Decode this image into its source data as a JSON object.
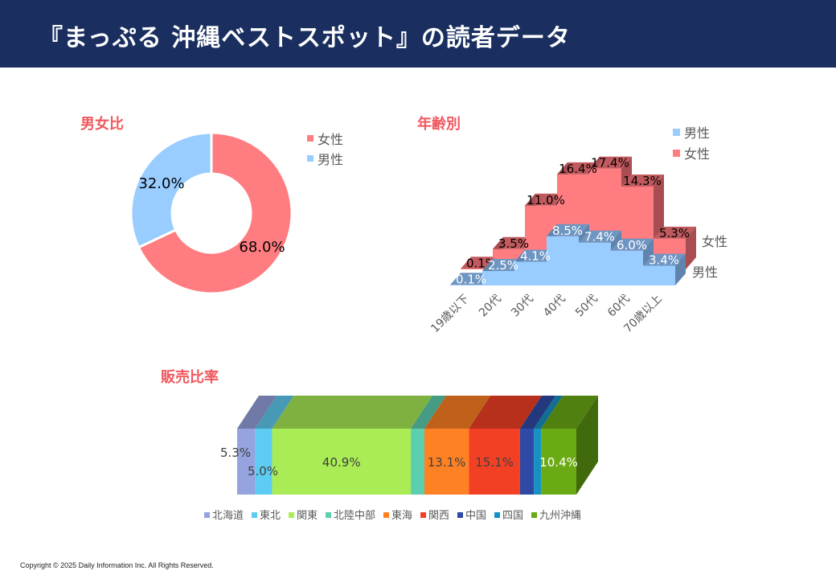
{
  "header": {
    "title": "『まっぷる 沖縄ベストスポット』の読者データ",
    "background": "#1a2f60"
  },
  "footer": {
    "copyright": "Copyright © 2025 Daily Information Inc. All Rights Reserved."
  },
  "chart_data": [
    {
      "id": "gender",
      "type": "pie",
      "variant": "donut",
      "title": "男女比",
      "slices": [
        {
          "label": "女性",
          "value": 68.0,
          "display": "68.0%",
          "color": "#ff7c80"
        },
        {
          "label": "男性",
          "value": 32.0,
          "display": "32.0%",
          "color": "#99ccff"
        }
      ],
      "legend": [
        "女性",
        "男性"
      ],
      "legend_position": "right"
    },
    {
      "id": "age",
      "type": "area",
      "variant": "3d-stepped",
      "title": "年齢別",
      "categories": [
        "19歳以下",
        "20代",
        "30代",
        "40代",
        "50代",
        "60代",
        "70歳以上"
      ],
      "series": [
        {
          "name": "男性",
          "values": [
            0.1,
            2.5,
            4.1,
            8.5,
            7.4,
            6.0,
            3.4
          ],
          "labels": [
            "0.1%",
            "2.5%",
            "4.1%",
            "8.5%",
            "7.4%",
            "6.0%",
            "3.4%"
          ],
          "color": "#99ccff",
          "top_color": "#6f96c2"
        },
        {
          "name": "女性",
          "values": [
            0.1,
            3.5,
            11.0,
            16.4,
            17.4,
            14.3,
            5.3
          ],
          "labels": [
            "0.1%",
            "3.5%",
            "11.0%",
            "16.4%",
            "17.4%",
            "14.3%",
            "5.3%"
          ],
          "color": "#ff7c80",
          "top_color": "#c05a5e"
        }
      ],
      "legend": [
        "男性",
        "女性"
      ],
      "legend_position": "top-right",
      "depth_axis_labels": [
        "女性",
        "男性"
      ]
    },
    {
      "id": "sales",
      "type": "bar",
      "variant": "3d-100%-stacked-horizontal",
      "title": "販売比率",
      "segments": [
        {
          "label": "北海道",
          "value": 5.3,
          "display": "5.3%",
          "color": "#95a3de",
          "top": "#717aa6"
        },
        {
          "label": "東北",
          "value": 5.0,
          "display": "5.0%",
          "color": "#5ecbf3",
          "top": "#4799b6"
        },
        {
          "label": "関東",
          "value": 40.9,
          "display": "40.9%",
          "color": "#a9ec55",
          "top": "#7fb140"
        },
        {
          "label": "北陸中部",
          "value": 4.0,
          "display": "",
          "color": "#5ccfae",
          "top": "#459b83"
        },
        {
          "label": "東海",
          "value": 13.1,
          "display": "13.1%",
          "color": "#fe8124",
          "top": "#bf611b"
        },
        {
          "label": "関西",
          "value": 15.1,
          "display": "15.1%",
          "color": "#f24025",
          "top": "#b6301c"
        },
        {
          "label": "中国",
          "value": 4.1,
          "display": "",
          "color": "#2f4aa6",
          "top": "#23387d"
        },
        {
          "label": "四国",
          "value": 2.1,
          "display": "",
          "color": "#1592c3",
          "top": "#106e92"
        },
        {
          "label": "九州沖縄",
          "value": 10.4,
          "display": "10.4%",
          "color": "#6aaa14",
          "top": "#50800f",
          "side": "#406a0c"
        }
      ],
      "legend_position": "bottom"
    }
  ]
}
